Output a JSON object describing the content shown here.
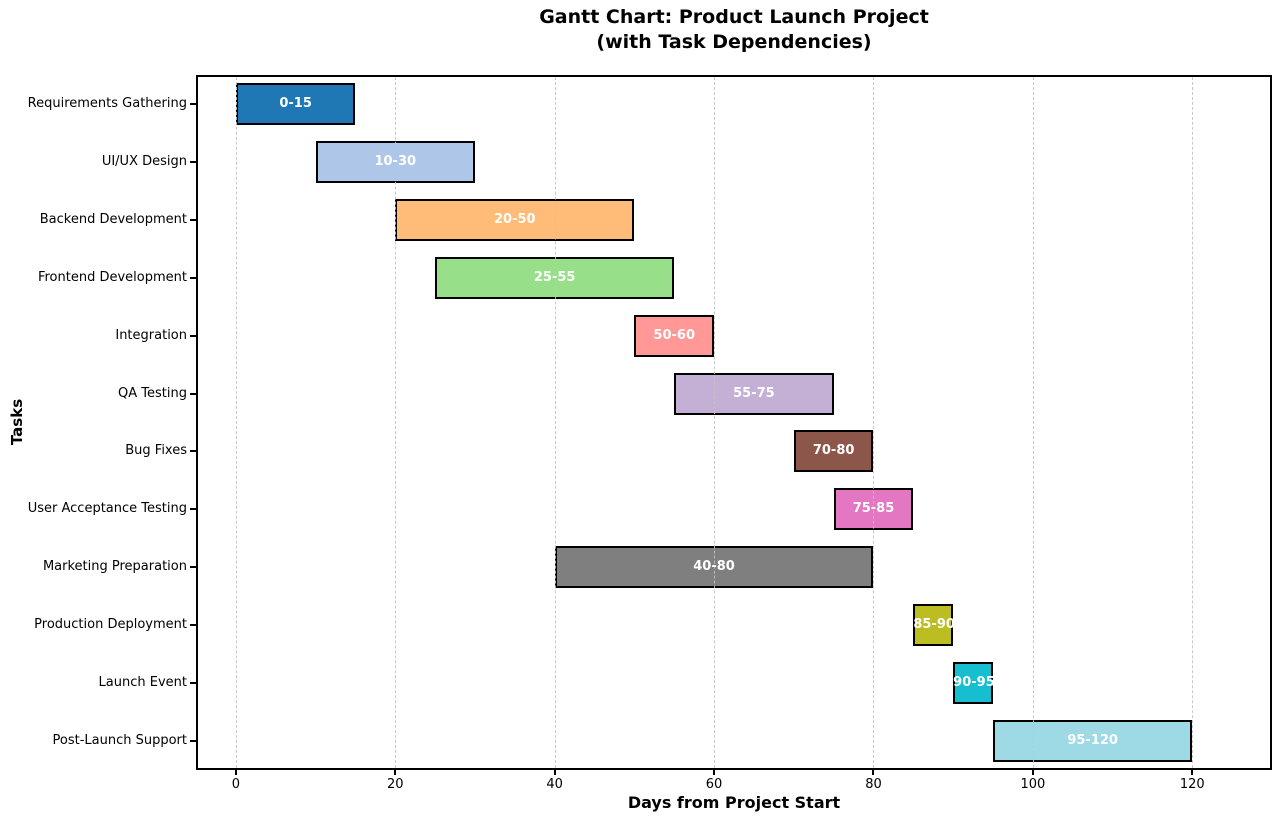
{
  "chart_data": {
    "type": "bar",
    "subtype": "gantt",
    "title_line1": "Gantt Chart: Product Launch Project",
    "title_line2": "(with Task Dependencies)",
    "xlabel": "Days from Project Start",
    "ylabel": "Tasks",
    "xlim": [
      -5,
      130
    ],
    "xticks": [
      0,
      20,
      40,
      60,
      80,
      100,
      120
    ],
    "xtick_labels": [
      "0",
      "20",
      "40",
      "60",
      "80",
      "100",
      "120"
    ],
    "grid": "vertical dashed, drawn over bars",
    "legend": "none",
    "colors": {
      "background": "#ffffff",
      "bar_edge": "#000000",
      "bar_label_text": "#ffffff",
      "gridline": "#c3c3c3",
      "text": "#000000"
    },
    "tasks": [
      {
        "label": "Requirements Gathering",
        "start": 0,
        "end": 15,
        "bar_label": "0-15",
        "color": "#1f77b4"
      },
      {
        "label": "UI/UX Design",
        "start": 10,
        "end": 30,
        "bar_label": "10-30",
        "color": "#aec7e8"
      },
      {
        "label": "Backend Development",
        "start": 20,
        "end": 50,
        "bar_label": "20-50",
        "color": "#ffbb78"
      },
      {
        "label": "Frontend Development",
        "start": 25,
        "end": 55,
        "bar_label": "25-55",
        "color": "#98df8a"
      },
      {
        "label": "Integration",
        "start": 50,
        "end": 60,
        "bar_label": "50-60",
        "color": "#ff9896"
      },
      {
        "label": "QA Testing",
        "start": 55,
        "end": 75,
        "bar_label": "55-75",
        "color": "#c5b0d5"
      },
      {
        "label": "Bug Fixes",
        "start": 70,
        "end": 80,
        "bar_label": "70-80",
        "color": "#8c564b"
      },
      {
        "label": "User Acceptance Testing",
        "start": 75,
        "end": 85,
        "bar_label": "75-85",
        "color": "#e377c2"
      },
      {
        "label": "Marketing Preparation",
        "start": 40,
        "end": 80,
        "bar_label": "40-80",
        "color": "#7f7f7f"
      },
      {
        "label": "Production Deployment",
        "start": 85,
        "end": 90,
        "bar_label": "85-90",
        "color": "#bcbd22"
      },
      {
        "label": "Launch Event",
        "start": 90,
        "end": 95,
        "bar_label": "90-95",
        "color": "#17becf"
      },
      {
        "label": "Post-Launch Support",
        "start": 95,
        "end": 120,
        "bar_label": "95-120",
        "color": "#9edae5"
      }
    ]
  }
}
